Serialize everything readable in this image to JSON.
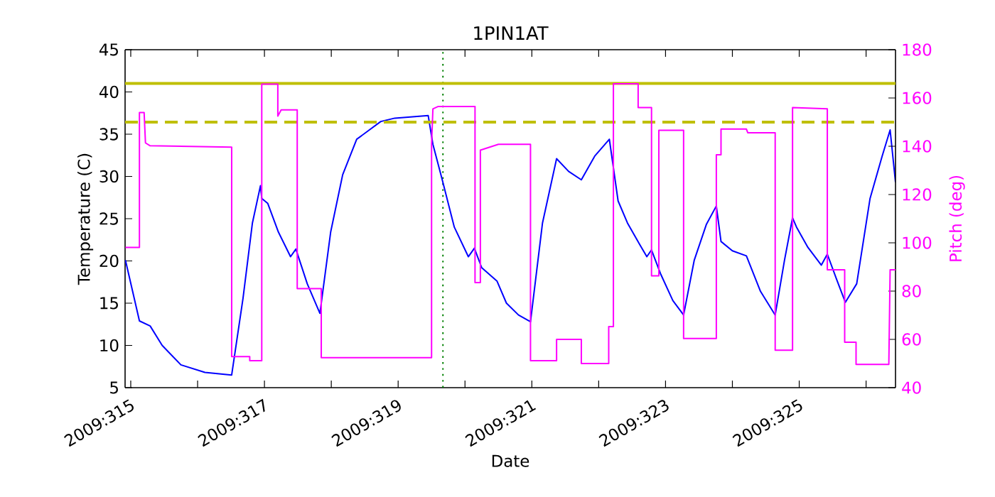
{
  "chart_data": {
    "type": "line",
    "title": "1PIN1AT",
    "xlabel": "Date",
    "ylabel": "Temperature (C)",
    "y2label": "Pitch (deg)",
    "xlim": [
      "2009-11-10T21:58",
      "2009-11-22T10:34"
    ],
    "xticks": [
      {
        "value": "2009-11-11",
        "label": "2009:315"
      },
      {
        "value": "2009-11-12",
        "label": null
      },
      {
        "value": "2009-11-13",
        "label": "2009:317"
      },
      {
        "value": "2009-11-14",
        "label": null
      },
      {
        "value": "2009-11-15",
        "label": "2009:319"
      },
      {
        "value": "2009-11-16",
        "label": null
      },
      {
        "value": "2009-11-17",
        "label": "2009:321"
      },
      {
        "value": "2009-11-18",
        "label": null
      },
      {
        "value": "2009-11-19",
        "label": "2009:323"
      },
      {
        "value": "2009-11-20",
        "label": null
      },
      {
        "value": "2009-11-21",
        "label": "2009:325"
      },
      {
        "value": "2009-11-22",
        "label": null
      }
    ],
    "ylim": [
      5,
      45
    ],
    "yticks": [
      5,
      10,
      15,
      20,
      25,
      30,
      35,
      40,
      45
    ],
    "y2lim": [
      40,
      180
    ],
    "y2ticks": [
      40,
      60,
      80,
      100,
      120,
      140,
      160,
      180
    ],
    "series": [
      {
        "color": "#0000ff",
        "x": [
          "2009-11-10T22:05",
          "2009-11-11T03:07",
          "2009-11-11T06:58",
          "2009-11-11T11:17",
          "2009-11-11T18:00",
          "2009-11-12T02:38",
          "2009-11-12T12:14",
          "2009-11-12T16:19",
          "2009-11-12T19:41",
          "2009-11-12T22:34",
          "2009-11-12T23:02",
          "2009-11-13T01:12",
          "2009-11-13T05:02",
          "2009-11-13T09:22",
          "2009-11-13T11:17",
          "2009-11-13T15:22",
          "2009-11-13T19:55",
          "2009-11-13T23:46",
          "2009-11-14T04:05",
          "2009-11-14T09:07",
          "2009-11-14T17:46",
          "2009-11-14T22:48",
          "2009-11-15T10:48",
          "2009-11-15T12:29",
          "2009-11-15T15:50",
          "2009-11-15T20:10",
          "2009-11-16T01:12",
          "2009-11-16T03:22",
          "2009-11-16T06:00",
          "2009-11-16T11:31",
          "2009-11-16T14:53",
          "2009-11-16T19:12",
          "2009-11-16T23:31",
          "2009-11-17T03:50",
          "2009-11-17T08:53",
          "2009-11-17T13:12",
          "2009-11-17T17:46",
          "2009-11-17T22:34",
          "2009-11-18T03:50",
          "2009-11-18T06:58",
          "2009-11-18T10:19",
          "2009-11-18T14:38",
          "2009-11-18T17:17",
          "2009-11-18T18:58",
          "2009-11-18T22:19",
          "2009-11-19T02:38",
          "2009-11-19T06:29",
          "2009-11-19T10:19",
          "2009-11-19T14:38",
          "2009-11-19T18:14",
          "2009-11-19T19:55",
          "2009-11-20T00:00",
          "2009-11-20T05:02",
          "2009-11-20T10:05",
          "2009-11-20T15:22",
          "2009-11-20T18:43",
          "2009-11-20T21:36",
          "2009-11-20T23:02",
          "2009-11-21T03:07",
          "2009-11-21T07:55",
          "2009-11-21T10:05",
          "2009-11-21T13:26",
          "2009-11-21T16:34",
          "2009-11-21T20:38",
          "2009-11-22T01:26",
          "2009-11-22T05:46",
          "2009-11-22T08:38",
          "2009-11-22T10:34"
        ],
        "values": [
          20.1,
          12.9,
          12.3,
          10.0,
          7.7,
          6.8,
          6.5,
          15.6,
          24.5,
          28.9,
          27.4,
          26.8,
          23.4,
          20.5,
          21.4,
          17.3,
          13.8,
          23.4,
          30.2,
          34.4,
          36.5,
          36.9,
          37.2,
          33.8,
          29.6,
          24.0,
          20.5,
          21.5,
          19.2,
          17.6,
          15.0,
          13.6,
          12.8,
          24.5,
          32.1,
          30.6,
          29.6,
          32.4,
          34.4,
          27.1,
          24.5,
          22.0,
          20.5,
          21.3,
          18.4,
          15.3,
          13.6,
          20.1,
          24.3,
          26.5,
          22.3,
          21.2,
          20.6,
          16.4,
          13.6,
          20.1,
          25.1,
          24.0,
          21.6,
          19.5,
          20.8,
          17.8,
          15.1,
          17.3,
          27.4,
          32.4,
          35.5,
          29.3
        ]
      },
      {
        "color": "#ff00ff",
        "axis": "y2",
        "x": [
          "2009-11-10T22:05",
          "2009-11-11T03:07",
          "2009-11-11T03:07",
          "2009-11-11T04:48",
          "2009-11-11T05:17",
          "2009-11-11T06:58",
          "2009-11-12T12:14",
          "2009-11-12T12:14",
          "2009-11-12T18:43",
          "2009-11-12T18:43",
          "2009-11-12T23:02",
          "2009-11-12T23:02",
          "2009-11-13T04:48",
          "2009-11-13T04:48",
          "2009-11-13T06:00",
          "2009-11-13T11:46",
          "2009-11-13T11:46",
          "2009-11-13T20:24",
          "2009-11-13T20:24",
          "2009-11-15T12:00",
          "2009-11-15T12:00",
          "2009-11-15T12:29",
          "2009-11-15T14:24",
          "2009-11-16T03:36",
          "2009-11-16T03:36",
          "2009-11-16T05:31",
          "2009-11-16T05:31",
          "2009-11-16T12:00",
          "2009-11-16T23:31",
          "2009-11-16T23:31",
          "2009-11-17T08:53",
          "2009-11-17T08:53",
          "2009-11-17T17:46",
          "2009-11-17T17:46",
          "2009-11-18T03:36",
          "2009-11-18T03:36",
          "2009-11-18T05:17",
          "2009-11-18T05:17",
          "2009-11-18T14:10",
          "2009-11-18T14:10",
          "2009-11-18T18:58",
          "2009-11-18T18:58",
          "2009-11-18T21:36",
          "2009-11-18T21:36",
          "2009-11-19T06:29",
          "2009-11-19T06:29",
          "2009-11-19T18:14",
          "2009-11-19T18:14",
          "2009-11-19T19:55",
          "2009-11-19T19:55",
          "2009-11-20T05:02",
          "2009-11-20T05:31",
          "2009-11-20T15:22",
          "2009-11-20T15:22",
          "2009-11-20T21:36",
          "2009-11-20T21:36",
          "2009-11-21T10:05",
          "2009-11-21T10:05",
          "2009-11-21T16:19",
          "2009-11-21T16:19",
          "2009-11-21T20:24",
          "2009-11-21T20:24",
          "2009-11-22T08:10",
          "2009-11-22T08:38",
          "2009-11-22T10:34"
        ],
        "values": [
          98.1,
          98.1,
          154,
          154,
          141.4,
          140.2,
          139.6,
          52.9,
          52.9,
          51.2,
          51.2,
          165.7,
          165.7,
          152.5,
          155.1,
          155.1,
          81,
          81,
          52.4,
          52.4,
          140.8,
          155.5,
          156.5,
          156.5,
          83.5,
          83.5,
          138.4,
          140.8,
          140.8,
          51.2,
          51.2,
          60,
          60,
          50,
          50,
          65.3,
          65.3,
          165.9,
          165.9,
          156,
          156,
          86.3,
          86.3,
          146.6,
          146.6,
          60.4,
          60.4,
          136.5,
          136.5,
          147.1,
          147.1,
          145.6,
          145.6,
          55.5,
          55.5,
          156,
          155.5,
          88.8,
          88.8,
          58.8,
          58.8,
          49.6,
          49.6,
          88.8,
          88.8
        ]
      }
    ],
    "ref_lines": [
      {
        "axis": "y2",
        "value": 166,
        "color": "#bfbf00",
        "line_style": "solid"
      },
      {
        "axis": "y2",
        "value": 150,
        "color": "#bfbf00",
        "line_style": "dashed"
      },
      {
        "axis": "x",
        "value": "2009-11-15T16:05",
        "color": "#008000",
        "line_style": "dotted"
      }
    ]
  }
}
